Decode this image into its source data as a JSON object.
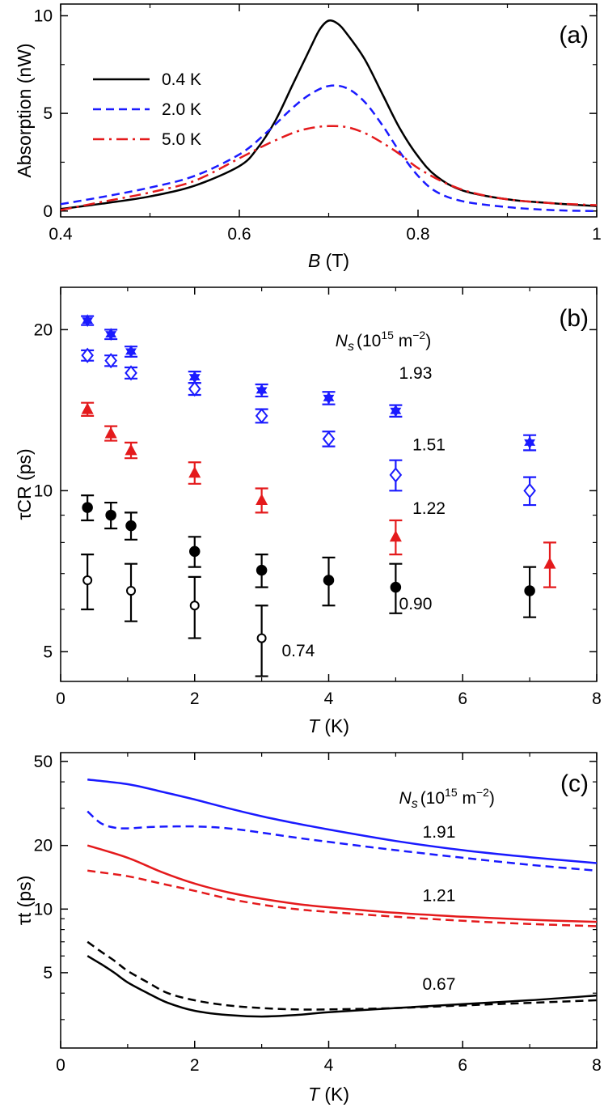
{
  "chart_data": [
    {
      "panel": "(a)",
      "type": "line",
      "xlabel_italic": "B",
      "xlabel_rest": " (T)",
      "ylabel": "Absorption (nW)",
      "xlim": [
        0.4,
        1.0
      ],
      "ylim": [
        -0.3,
        10.6
      ],
      "xticks": [
        0.4,
        0.6,
        0.8,
        1.0
      ],
      "xtick_labels": [
        "0.4",
        "0.6",
        "0.8",
        "1"
      ],
      "yticks": [
        0,
        5,
        10
      ],
      "ytick_labels": [
        "0",
        "5",
        "10"
      ],
      "legend_position": "top-left",
      "series": [
        {
          "name": "0.4 K",
          "color": "#000000",
          "dash": "solid",
          "x": [
            0.4,
            0.45,
            0.5,
            0.55,
            0.6,
            0.62,
            0.64,
            0.66,
            0.68,
            0.69,
            0.7,
            0.71,
            0.72,
            0.74,
            0.76,
            0.78,
            0.8,
            0.82,
            0.85,
            0.9,
            0.95,
            1.0
          ],
          "y": [
            0.1,
            0.4,
            0.75,
            1.3,
            2.3,
            3.2,
            4.6,
            6.5,
            8.4,
            9.3,
            9.75,
            9.6,
            9.1,
            7.8,
            6.0,
            4.2,
            2.8,
            1.8,
            1.05,
            0.6,
            0.4,
            0.25
          ]
        },
        {
          "name": "2.0 K",
          "color": "#1a1aff",
          "dash": "dashed",
          "x": [
            0.4,
            0.45,
            0.5,
            0.55,
            0.6,
            0.63,
            0.66,
            0.68,
            0.7,
            0.72,
            0.74,
            0.76,
            0.78,
            0.8,
            0.82,
            0.85,
            0.9,
            0.95,
            1.0
          ],
          "y": [
            0.35,
            0.75,
            1.2,
            1.8,
            2.9,
            4.0,
            5.3,
            6.0,
            6.4,
            6.3,
            5.6,
            4.4,
            3.0,
            1.8,
            1.0,
            0.5,
            0.2,
            0.05,
            0.0
          ]
        },
        {
          "name": "5.0 K",
          "color": "#e41a1c",
          "dash": "dashdot",
          "x": [
            0.4,
            0.45,
            0.5,
            0.55,
            0.6,
            0.63,
            0.66,
            0.68,
            0.7,
            0.72,
            0.74,
            0.76,
            0.78,
            0.8,
            0.83,
            0.86,
            0.9,
            0.95,
            1.0
          ],
          "y": [
            0.05,
            0.5,
            0.95,
            1.55,
            2.7,
            3.4,
            4.0,
            4.25,
            4.35,
            4.3,
            4.0,
            3.5,
            2.9,
            2.2,
            1.45,
            0.95,
            0.6,
            0.4,
            0.3
          ]
        }
      ]
    },
    {
      "panel": "(b)",
      "type": "scatter",
      "xlabel_italic": "T",
      "xlabel_rest": " (K)",
      "ylabel": "τCR (ps)",
      "yscale": "log",
      "xlim": [
        0,
        8
      ],
      "ylim": [
        4.4,
        24
      ],
      "xticks": [
        0,
        2,
        4,
        6,
        8
      ],
      "xtick_labels": [
        "0",
        "2",
        "4",
        "6",
        "8"
      ],
      "yticks": [
        5,
        10,
        20
      ],
      "ytick_labels": [
        "5",
        "10",
        "20"
      ],
      "legend_title_main": "N",
      "legend_title_sub": "s",
      "legend_title_unit": "(10",
      "legend_title_exp": "15",
      "legend_title_tail": " m",
      "legend_title_exp2": "−2",
      "legend_title_close": ")",
      "series": [
        {
          "name": "1.93",
          "color": "#1a1aff",
          "marker": "star-filled",
          "x": [
            0.4,
            0.75,
            1.05,
            2.0,
            3.0,
            4.0,
            5.0,
            7.0
          ],
          "y": [
            20.8,
            19.6,
            18.2,
            16.3,
            15.4,
            14.9,
            14.1,
            12.3
          ],
          "err": [
            0.4,
            0.4,
            0.4,
            0.4,
            0.4,
            0.4,
            0.35,
            0.4
          ]
        },
        {
          "name": "1.51",
          "color": "#1a1aff",
          "marker": "diamond-open",
          "x": [
            0.4,
            0.75,
            1.05,
            2.0,
            3.0,
            4.0,
            5.0,
            7.0
          ],
          "y": [
            17.9,
            17.5,
            16.6,
            15.5,
            13.8,
            12.5,
            10.7,
            10.0
          ],
          "err": [
            0.4,
            0.4,
            0.4,
            0.4,
            0.4,
            0.4,
            0.7,
            0.6
          ]
        },
        {
          "name": "1.22",
          "color": "#e41a1c",
          "marker": "triangle-filled",
          "x": [
            0.4,
            0.75,
            1.05,
            2.0,
            3.0,
            5.0,
            7.3
          ],
          "y": [
            14.2,
            12.8,
            11.9,
            10.8,
            9.6,
            8.2,
            7.3
          ],
          "err": [
            0.4,
            0.4,
            0.4,
            0.5,
            0.5,
            0.6,
            0.7
          ]
        },
        {
          "name": "0.90",
          "color": "#000000",
          "marker": "circle-filled",
          "x": [
            0.4,
            0.75,
            1.05,
            2.0,
            3.0,
            4.0,
            5.0,
            7.0
          ],
          "y": [
            9.3,
            9.0,
            8.6,
            7.7,
            7.1,
            6.8,
            6.6,
            6.5
          ],
          "err": [
            0.5,
            0.5,
            0.5,
            0.5,
            0.5,
            0.7,
            0.7,
            0.7
          ]
        },
        {
          "name": "0.74",
          "color": "#000000",
          "marker": "circle-open",
          "x": [
            0.4,
            1.05,
            2.0,
            3.0
          ],
          "y": [
            6.8,
            6.5,
            6.1,
            5.3
          ],
          "err": [
            0.8,
            0.8,
            0.8,
            0.8
          ]
        }
      ],
      "annotations": [
        {
          "text": "1.93",
          "x": 5.05,
          "y": 16.2
        },
        {
          "text": "1.51",
          "x": 5.25,
          "y": 11.9
        },
        {
          "text": "1.22",
          "x": 5.25,
          "y": 9.05
        },
        {
          "text": "0.90",
          "x": 5.05,
          "y": 6.0
        },
        {
          "text": "0.74",
          "x": 3.3,
          "y": 4.9
        }
      ]
    },
    {
      "panel": "(c)",
      "type": "line",
      "xlabel_italic": "T",
      "xlabel_rest": " (K)",
      "ylabel": "τt (ps)",
      "yscale": "log",
      "xlim": [
        0,
        8
      ],
      "ylim": [
        2.2,
        55
      ],
      "xticks": [
        0,
        2,
        4,
        6,
        8
      ],
      "xtick_labels": [
        "0",
        "2",
        "4",
        "6",
        "8"
      ],
      "yticks": [
        5,
        10,
        20,
        50
      ],
      "ytick_labels": [
        "5",
        "10",
        "20",
        "50"
      ],
      "legend_title_main": "N",
      "legend_title_sub": "s",
      "legend_title_unit": "(10",
      "legend_title_exp": "15",
      "legend_title_tail": " m",
      "legend_title_exp2": "−2",
      "legend_title_close": ")",
      "series": [
        {
          "name": "1.91 solid",
          "color": "#1a1aff",
          "dash": "solid",
          "x": [
            0.4,
            1,
            1.5,
            2,
            2.5,
            3,
            3.5,
            4,
            5,
            6,
            7,
            8
          ],
          "y": [
            41,
            39,
            36,
            33,
            30,
            27.5,
            25.5,
            23.8,
            21,
            19,
            17.6,
            16.5
          ]
        },
        {
          "name": "1.91 dashed",
          "color": "#1a1aff",
          "dash": "dashed",
          "x": [
            0.4,
            0.6,
            0.8,
            1.0,
            1.4,
            2.0,
            2.5,
            3,
            3.5,
            4,
            5,
            6,
            7,
            8
          ],
          "y": [
            29,
            25.5,
            24.3,
            24.1,
            24.5,
            24.6,
            24.1,
            23,
            21.8,
            20.8,
            19,
            17.5,
            16.2,
            15.2
          ]
        },
        {
          "name": "1.21 solid",
          "color": "#e41a1c",
          "dash": "solid",
          "x": [
            0.4,
            1,
            1.5,
            2,
            2.5,
            3,
            3.5,
            4,
            5,
            6,
            7,
            8
          ],
          "y": [
            20,
            17.5,
            15,
            13.2,
            12,
            11.2,
            10.6,
            10.2,
            9.6,
            9.2,
            8.9,
            8.7
          ]
        },
        {
          "name": "1.21 dashed",
          "color": "#e41a1c",
          "dash": "dashed",
          "x": [
            0.4,
            1,
            1.5,
            2,
            2.5,
            3,
            3.5,
            4,
            5,
            6,
            7,
            8
          ],
          "y": [
            15.2,
            14.3,
            13.2,
            12.2,
            11.2,
            10.5,
            10,
            9.7,
            9.2,
            8.8,
            8.5,
            8.3
          ]
        },
        {
          "name": "0.67 solid",
          "color": "#000000",
          "dash": "solid",
          "x": [
            0.4,
            0.6,
            0.8,
            1.0,
            1.3,
            1.6,
            2.0,
            2.5,
            3.0,
            3.5,
            4.0,
            5.0,
            6.0,
            7.0,
            8.0
          ],
          "y": [
            6.0,
            5.5,
            5.0,
            4.5,
            4.0,
            3.6,
            3.3,
            3.15,
            3.1,
            3.15,
            3.25,
            3.4,
            3.55,
            3.7,
            3.9
          ]
        },
        {
          "name": "0.67 dashed",
          "color": "#000000",
          "dash": "dashed",
          "x": [
            0.4,
            0.6,
            0.8,
            1.0,
            1.3,
            1.6,
            2.0,
            2.5,
            3.0,
            3.5,
            4.0,
            5.0,
            6.0,
            7.0,
            8.0
          ],
          "y": [
            7.0,
            6.3,
            5.7,
            5.1,
            4.5,
            4.0,
            3.7,
            3.5,
            3.4,
            3.35,
            3.35,
            3.4,
            3.5,
            3.6,
            3.7
          ]
        }
      ],
      "annotations": [
        {
          "text": "1.91",
          "x": 5.4,
          "y": 21.8
        },
        {
          "text": "1.21",
          "x": 5.4,
          "y": 10.9
        },
        {
          "text": "0.67",
          "x": 5.4,
          "y": 4.15
        }
      ]
    }
  ]
}
